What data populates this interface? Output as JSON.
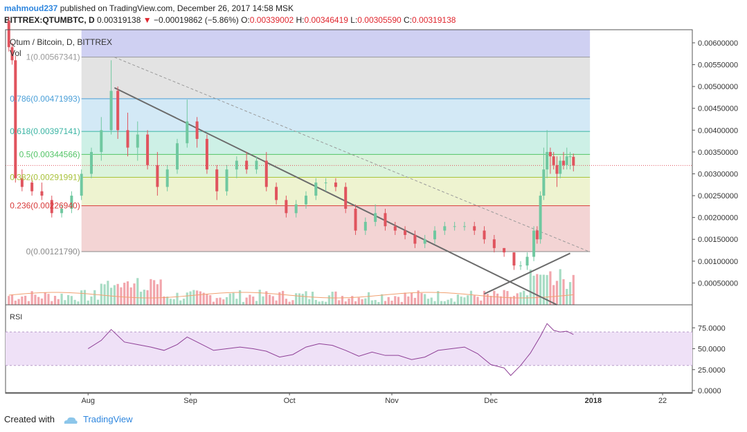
{
  "header": {
    "author": "mahmoud237",
    "published": "published on TradingView.com, December 26, 2017 14:58 MSK",
    "symbol": "BITTREX:QTUMBTC, D",
    "last": "0.00319138",
    "arrow": "▼",
    "change": "−0.00019862 (−5.86%)",
    "o_label": "O:",
    "o": "0.00339002",
    "h_label": "H:",
    "h": "0.00346419",
    "l_label": "L:",
    "l": "0.00305590",
    "c_label": "C:",
    "c": "0.00319138"
  },
  "main_pane": {
    "title": "Qtum / Bitcoin, D, BITTREX",
    "vol_label": "Vol"
  },
  "rsi_pane": {
    "label": "RSI"
  },
  "footer": {
    "created_with": "Created with",
    "brand": "TradingView"
  },
  "colors": {
    "up": "#70c8a0",
    "down": "#e0545e",
    "vol_up": "#a8dcc4",
    "vol_down": "#f2a6ac",
    "trendline": "#6b6b6b",
    "rsi_line": "#8e3f96",
    "rsi_band": "#efe1f7",
    "vol_ma": "#f0a070"
  },
  "chart_data": {
    "type": "candlestick",
    "title": "Qtum / Bitcoin, D, BITTREX",
    "x_axis": {
      "tick_labels": [
        "Aug",
        "Sep",
        "Oct",
        "Nov",
        "Dec",
        "2018",
        "22"
      ],
      "tick_dates": [
        "2017-08-01",
        "2017-09-01",
        "2017-10-01",
        "2017-11-01",
        "2017-12-01",
        "2018-01-01",
        "2018-01-22"
      ],
      "range": [
        "2017-07-07",
        "2018-01-31"
      ]
    },
    "y_axis": {
      "ylim": [
        0.0,
        0.0063
      ],
      "tick_values": [
        0.0005,
        0.001,
        0.0015,
        0.002,
        0.0025,
        0.003,
        0.0035,
        0.004,
        0.0045,
        0.005,
        0.0055,
        0.006
      ],
      "tick_labels": [
        "0.00050000",
        "0.00100000",
        "0.00150000",
        "0.00200000",
        "0.00250000",
        "0.00300000",
        "0.00350000",
        "0.00400000",
        "0.00450000",
        "0.00500000",
        "0.00550000",
        "0.00600000"
      ]
    },
    "fibonacci": [
      {
        "label": "1",
        "value": "0.00567341",
        "price": 0.00567341,
        "line": "#9a9a9a",
        "fill": "#e3e3e3"
      },
      {
        "label": "0.786",
        "value": "0.00471993",
        "price": 0.00471993,
        "line": "#4a9fd8",
        "fill": "#d3e9f6"
      },
      {
        "label": "0.618",
        "value": "0.00397141",
        "price": 0.00397141,
        "line": "#3ab4a3",
        "fill": "#cdf0e6"
      },
      {
        "label": "0.5",
        "value": "0.00344566",
        "price": 0.00344566,
        "line": "#52c466",
        "fill": "#dbf3dc"
      },
      {
        "label": "0.382",
        "value": "0.00291991",
        "price": 0.00291991,
        "line": "#a8c23a",
        "fill": "#eef3d0"
      },
      {
        "label": "0.236",
        "value": "0.00226940",
        "price": 0.0022694,
        "line": "#d83a3a",
        "fill": "#f3d4d4"
      },
      {
        "label": "0",
        "value": "0.00121790",
        "price": 0.0012179,
        "line": "#8a8a8a",
        "fill": null
      }
    ],
    "fib_top_band": {
      "from": 0.00567341,
      "to": 0.0063,
      "fill": "#cfd0f2"
    },
    "candles": [
      {
        "d": "2017-07-08",
        "o": 0.0065,
        "h": 0.0066,
        "l": 0.0058,
        "c": 0.0059
      },
      {
        "d": "2017-07-09",
        "o": 0.0059,
        "h": 0.006,
        "l": 0.0055,
        "c": 0.0056
      },
      {
        "d": "2017-07-10",
        "o": 0.0056,
        "h": 0.0057,
        "l": 0.0028,
        "c": 0.0029
      },
      {
        "d": "2017-07-12",
        "o": 0.0029,
        "h": 0.0031,
        "l": 0.0026,
        "c": 0.0027
      },
      {
        "d": "2017-07-15",
        "o": 0.0028,
        "h": 0.0029,
        "l": 0.0025,
        "c": 0.0026
      },
      {
        "d": "2017-07-18",
        "o": 0.0026,
        "h": 0.0028,
        "l": 0.0024,
        "c": 0.0025
      },
      {
        "d": "2017-07-21",
        "o": 0.0024,
        "h": 0.0025,
        "l": 0.002,
        "c": 0.0021
      },
      {
        "d": "2017-07-24",
        "o": 0.0021,
        "h": 0.0023,
        "l": 0.002,
        "c": 0.0022
      },
      {
        "d": "2017-07-27",
        "o": 0.0022,
        "h": 0.0026,
        "l": 0.0021,
        "c": 0.0025
      },
      {
        "d": "2017-07-30",
        "o": 0.0025,
        "h": 0.0031,
        "l": 0.0024,
        "c": 0.003
      },
      {
        "d": "2017-08-02",
        "o": 0.003,
        "h": 0.0036,
        "l": 0.0029,
        "c": 0.0035
      },
      {
        "d": "2017-08-05",
        "o": 0.0035,
        "h": 0.0043,
        "l": 0.0033,
        "c": 0.004
      },
      {
        "d": "2017-08-08",
        "o": 0.004,
        "h": 0.0056,
        "l": 0.0039,
        "c": 0.0049
      },
      {
        "d": "2017-08-10",
        "o": 0.0049,
        "h": 0.005,
        "l": 0.0038,
        "c": 0.004
      },
      {
        "d": "2017-08-13",
        "o": 0.004,
        "h": 0.0044,
        "l": 0.0034,
        "c": 0.0036
      },
      {
        "d": "2017-08-16",
        "o": 0.0036,
        "h": 0.0042,
        "l": 0.0033,
        "c": 0.0039
      },
      {
        "d": "2017-08-19",
        "o": 0.0039,
        "h": 0.004,
        "l": 0.0031,
        "c": 0.0032
      },
      {
        "d": "2017-08-22",
        "o": 0.0032,
        "h": 0.0035,
        "l": 0.0025,
        "c": 0.0027
      },
      {
        "d": "2017-08-25",
        "o": 0.0027,
        "h": 0.0032,
        "l": 0.0026,
        "c": 0.0031
      },
      {
        "d": "2017-08-28",
        "o": 0.0031,
        "h": 0.0038,
        "l": 0.003,
        "c": 0.0037
      },
      {
        "d": "2017-08-31",
        "o": 0.0037,
        "h": 0.0047,
        "l": 0.0036,
        "c": 0.0042
      },
      {
        "d": "2017-09-03",
        "o": 0.0042,
        "h": 0.0043,
        "l": 0.0036,
        "c": 0.0038
      },
      {
        "d": "2017-09-06",
        "o": 0.0038,
        "h": 0.0039,
        "l": 0.003,
        "c": 0.0031
      },
      {
        "d": "2017-09-09",
        "o": 0.0031,
        "h": 0.0032,
        "l": 0.0024,
        "c": 0.0026
      },
      {
        "d": "2017-09-12",
        "o": 0.0026,
        "h": 0.0032,
        "l": 0.0025,
        "c": 0.0031
      },
      {
        "d": "2017-09-15",
        "o": 0.0031,
        "h": 0.0034,
        "l": 0.0029,
        "c": 0.0033
      },
      {
        "d": "2017-09-18",
        "o": 0.0033,
        "h": 0.0035,
        "l": 0.003,
        "c": 0.0031
      },
      {
        "d": "2017-09-21",
        "o": 0.0031,
        "h": 0.0034,
        "l": 0.003,
        "c": 0.0033
      },
      {
        "d": "2017-09-24",
        "o": 0.0033,
        "h": 0.0035,
        "l": 0.0026,
        "c": 0.0027
      },
      {
        "d": "2017-09-27",
        "o": 0.0027,
        "h": 0.0028,
        "l": 0.0023,
        "c": 0.0024
      },
      {
        "d": "2017-09-30",
        "o": 0.0024,
        "h": 0.0025,
        "l": 0.002,
        "c": 0.0021
      },
      {
        "d": "2017-10-03",
        "o": 0.0021,
        "h": 0.0024,
        "l": 0.002,
        "c": 0.0023
      },
      {
        "d": "2017-10-06",
        "o": 0.0023,
        "h": 0.0026,
        "l": 0.0022,
        "c": 0.0025
      },
      {
        "d": "2017-10-09",
        "o": 0.0025,
        "h": 0.0029,
        "l": 0.0024,
        "c": 0.0028
      },
      {
        "d": "2017-10-12",
        "o": 0.0028,
        "h": 0.0029,
        "l": 0.0026,
        "c": 0.0028
      },
      {
        "d": "2017-10-15",
        "o": 0.0028,
        "h": 0.0029,
        "l": 0.0026,
        "c": 0.0027
      },
      {
        "d": "2017-10-18",
        "o": 0.0027,
        "h": 0.0028,
        "l": 0.0021,
        "c": 0.0022
      },
      {
        "d": "2017-10-21",
        "o": 0.0022,
        "h": 0.0023,
        "l": 0.0016,
        "c": 0.0017
      },
      {
        "d": "2017-10-24",
        "o": 0.0017,
        "h": 0.002,
        "l": 0.0016,
        "c": 0.0019
      },
      {
        "d": "2017-10-27",
        "o": 0.0019,
        "h": 0.0023,
        "l": 0.0018,
        "c": 0.0021
      },
      {
        "d": "2017-10-30",
        "o": 0.0021,
        "h": 0.0022,
        "l": 0.0017,
        "c": 0.0018
      },
      {
        "d": "2017-11-02",
        "o": 0.0018,
        "h": 0.0019,
        "l": 0.0016,
        "c": 0.0017
      },
      {
        "d": "2017-11-05",
        "o": 0.0017,
        "h": 0.0018,
        "l": 0.0015,
        "c": 0.0016
      },
      {
        "d": "2017-11-08",
        "o": 0.0016,
        "h": 0.0017,
        "l": 0.0013,
        "c": 0.0014
      },
      {
        "d": "2017-11-11",
        "o": 0.0014,
        "h": 0.0016,
        "l": 0.0013,
        "c": 0.0015
      },
      {
        "d": "2017-11-14",
        "o": 0.0015,
        "h": 0.0018,
        "l": 0.0014,
        "c": 0.0017
      },
      {
        "d": "2017-11-17",
        "o": 0.0017,
        "h": 0.0019,
        "l": 0.0016,
        "c": 0.0018
      },
      {
        "d": "2017-11-20",
        "o": 0.0018,
        "h": 0.0019,
        "l": 0.0017,
        "c": 0.0018
      },
      {
        "d": "2017-11-23",
        "o": 0.0018,
        "h": 0.0019,
        "l": 0.0017,
        "c": 0.0018
      },
      {
        "d": "2017-11-26",
        "o": 0.0018,
        "h": 0.0019,
        "l": 0.0016,
        "c": 0.0017
      },
      {
        "d": "2017-11-29",
        "o": 0.0017,
        "h": 0.0018,
        "l": 0.0014,
        "c": 0.0015
      },
      {
        "d": "2017-12-02",
        "o": 0.0015,
        "h": 0.0016,
        "l": 0.0012,
        "c": 0.0013
      },
      {
        "d": "2017-12-05",
        "o": 0.0013,
        "h": 0.0013,
        "l": 0.0011,
        "c": 0.0012
      },
      {
        "d": "2017-12-08",
        "o": 0.0012,
        "h": 0.0012,
        "l": 0.0008,
        "c": 0.0009
      },
      {
        "d": "2017-12-10",
        "o": 0.0009,
        "h": 0.001,
        "l": 0.0008,
        "c": 0.0009
      },
      {
        "d": "2017-12-12",
        "o": 0.0009,
        "h": 0.0012,
        "l": 0.0008,
        "c": 0.0011
      },
      {
        "d": "2017-12-14",
        "o": 0.0011,
        "h": 0.0018,
        "l": 0.001,
        "c": 0.0017
      },
      {
        "d": "2017-12-15",
        "o": 0.0017,
        "h": 0.0018,
        "l": 0.0014,
        "c": 0.0015
      },
      {
        "d": "2017-12-16",
        "o": 0.0015,
        "h": 0.0026,
        "l": 0.0014,
        "c": 0.0025
      },
      {
        "d": "2017-12-17",
        "o": 0.0025,
        "h": 0.0036,
        "l": 0.0024,
        "c": 0.0031
      },
      {
        "d": "2017-12-18",
        "o": 0.0031,
        "h": 0.004,
        "l": 0.0029,
        "c": 0.0035
      },
      {
        "d": "2017-12-19",
        "o": 0.0035,
        "h": 0.0036,
        "l": 0.003,
        "c": 0.0034
      },
      {
        "d": "2017-12-20",
        "o": 0.0034,
        "h": 0.0035,
        "l": 0.0031,
        "c": 0.0032
      },
      {
        "d": "2017-12-21",
        "o": 0.0032,
        "h": 0.0034,
        "l": 0.0027,
        "c": 0.003
      },
      {
        "d": "2017-12-22",
        "o": 0.003,
        "h": 0.0034,
        "l": 0.0029,
        "c": 0.0033
      },
      {
        "d": "2017-12-23",
        "o": 0.0033,
        "h": 0.0035,
        "l": 0.0031,
        "c": 0.0032
      },
      {
        "d": "2017-12-24",
        "o": 0.0032,
        "h": 0.0036,
        "l": 0.0031,
        "c": 0.0034
      },
      {
        "d": "2017-12-25",
        "o": 0.0034,
        "h": 0.0035,
        "l": 0.0031,
        "c": 0.0034
      },
      {
        "d": "2017-12-26",
        "o": 0.00339002,
        "h": 0.00346419,
        "l": 0.0030559,
        "c": 0.00319138
      }
    ],
    "trendlines": [
      {
        "name": "descending",
        "from": {
          "d": "2017-08-09",
          "p": 0.00497
        },
        "to": {
          "d": "2017-12-21",
          "p": 0.0
        }
      },
      {
        "name": "ascending",
        "from": {
          "d": "2017-11-29",
          "p": 0.00025
        },
        "to": {
          "d": "2017-12-25",
          "p": 0.00118
        }
      },
      {
        "name": "dashed-trend",
        "from": {
          "d": "2017-08-09",
          "p": 0.00567
        },
        "to": {
          "d": "2017-12-31",
          "p": 0.00121
        }
      }
    ],
    "current_price_line": 0.00319138,
    "rsi": {
      "tick_values": [
        0,
        25,
        50,
        75
      ],
      "tick_labels": [
        "0.0000",
        "25.0000",
        "50.0000",
        "75.0000"
      ],
      "ylim": [
        0,
        100
      ],
      "band": [
        30,
        70
      ],
      "points": [
        {
          "d": "2017-08-01",
          "v": 50
        },
        {
          "d": "2017-08-05",
          "v": 60
        },
        {
          "d": "2017-08-08",
          "v": 73
        },
        {
          "d": "2017-08-12",
          "v": 58
        },
        {
          "d": "2017-08-16",
          "v": 55
        },
        {
          "d": "2017-08-20",
          "v": 52
        },
        {
          "d": "2017-08-24",
          "v": 48
        },
        {
          "d": "2017-08-28",
          "v": 55
        },
        {
          "d": "2017-08-31",
          "v": 64
        },
        {
          "d": "2017-09-04",
          "v": 56
        },
        {
          "d": "2017-09-08",
          "v": 48
        },
        {
          "d": "2017-09-12",
          "v": 50
        },
        {
          "d": "2017-09-16",
          "v": 52
        },
        {
          "d": "2017-09-20",
          "v": 50
        },
        {
          "d": "2017-09-24",
          "v": 47
        },
        {
          "d": "2017-09-28",
          "v": 40
        },
        {
          "d": "2017-10-02",
          "v": 43
        },
        {
          "d": "2017-10-06",
          "v": 52
        },
        {
          "d": "2017-10-10",
          "v": 56
        },
        {
          "d": "2017-10-14",
          "v": 54
        },
        {
          "d": "2017-10-18",
          "v": 48
        },
        {
          "d": "2017-10-22",
          "v": 41
        },
        {
          "d": "2017-10-26",
          "v": 46
        },
        {
          "d": "2017-10-30",
          "v": 42
        },
        {
          "d": "2017-11-03",
          "v": 42
        },
        {
          "d": "2017-11-07",
          "v": 37
        },
        {
          "d": "2017-11-11",
          "v": 40
        },
        {
          "d": "2017-11-15",
          "v": 48
        },
        {
          "d": "2017-11-19",
          "v": 50
        },
        {
          "d": "2017-11-23",
          "v": 52
        },
        {
          "d": "2017-11-27",
          "v": 44
        },
        {
          "d": "2017-12-01",
          "v": 31
        },
        {
          "d": "2017-12-05",
          "v": 27
        },
        {
          "d": "2017-12-07",
          "v": 18
        },
        {
          "d": "2017-12-10",
          "v": 30
        },
        {
          "d": "2017-12-13",
          "v": 45
        },
        {
          "d": "2017-12-16",
          "v": 65
        },
        {
          "d": "2017-12-18",
          "v": 80
        },
        {
          "d": "2017-12-20",
          "v": 72
        },
        {
          "d": "2017-12-22",
          "v": 70
        },
        {
          "d": "2017-12-24",
          "v": 71
        },
        {
          "d": "2017-12-26",
          "v": 67
        }
      ]
    }
  }
}
